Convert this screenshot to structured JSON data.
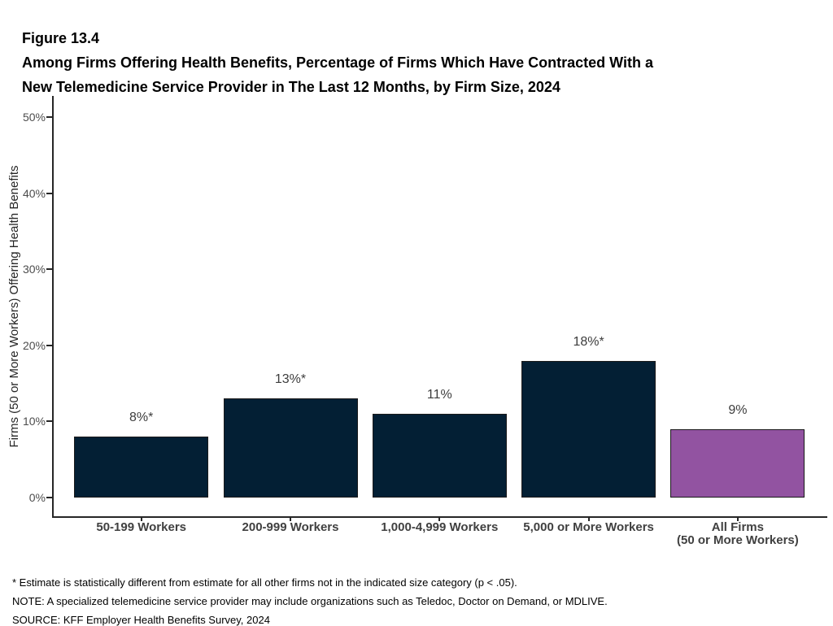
{
  "figure": {
    "label": "Figure 13.4",
    "title_lines": [
      "Among Firms Offering Health Benefits, Percentage of Firms Which Have Contracted With a",
      "New Telemedicine Service Provider in The Last 12 Months, by Firm Size, 2024"
    ]
  },
  "chart_data": {
    "type": "bar",
    "categories": [
      "50-199 Workers",
      "200-999 Workers",
      "1,000-4,999 Workers",
      "5,000 or More Workers",
      "All Firms\n(50 or More Workers)"
    ],
    "values": [
      8,
      13,
      11,
      18,
      9
    ],
    "value_labels": [
      "8%*",
      "13%*",
      "11%",
      "18%*",
      "9%"
    ],
    "ylabel": "Firms (50 or More Workers) Offering Health Benefits",
    "xlabel": "",
    "yticks": [
      "0%",
      "10%",
      "20%",
      "30%",
      "40%",
      "50%"
    ],
    "ylim": [
      0,
      50
    ],
    "grid": false,
    "legend": false,
    "bar_color": "#031F34",
    "highlight_color": "#9253A1",
    "highlight_index": 4,
    "bar_border_color": "#1A1A1A",
    "axis_color": "#262626"
  },
  "footnotes": [
    "* Estimate is statistically different from estimate for all other firms not in the indicated size category (p < .05).",
    "NOTE: A specialized telemedicine service provider may include organizations such as Teledoc, Doctor on Demand, or MDLIVE.",
    "SOURCE: KFF Employer Health Benefits Survey, 2024"
  ]
}
